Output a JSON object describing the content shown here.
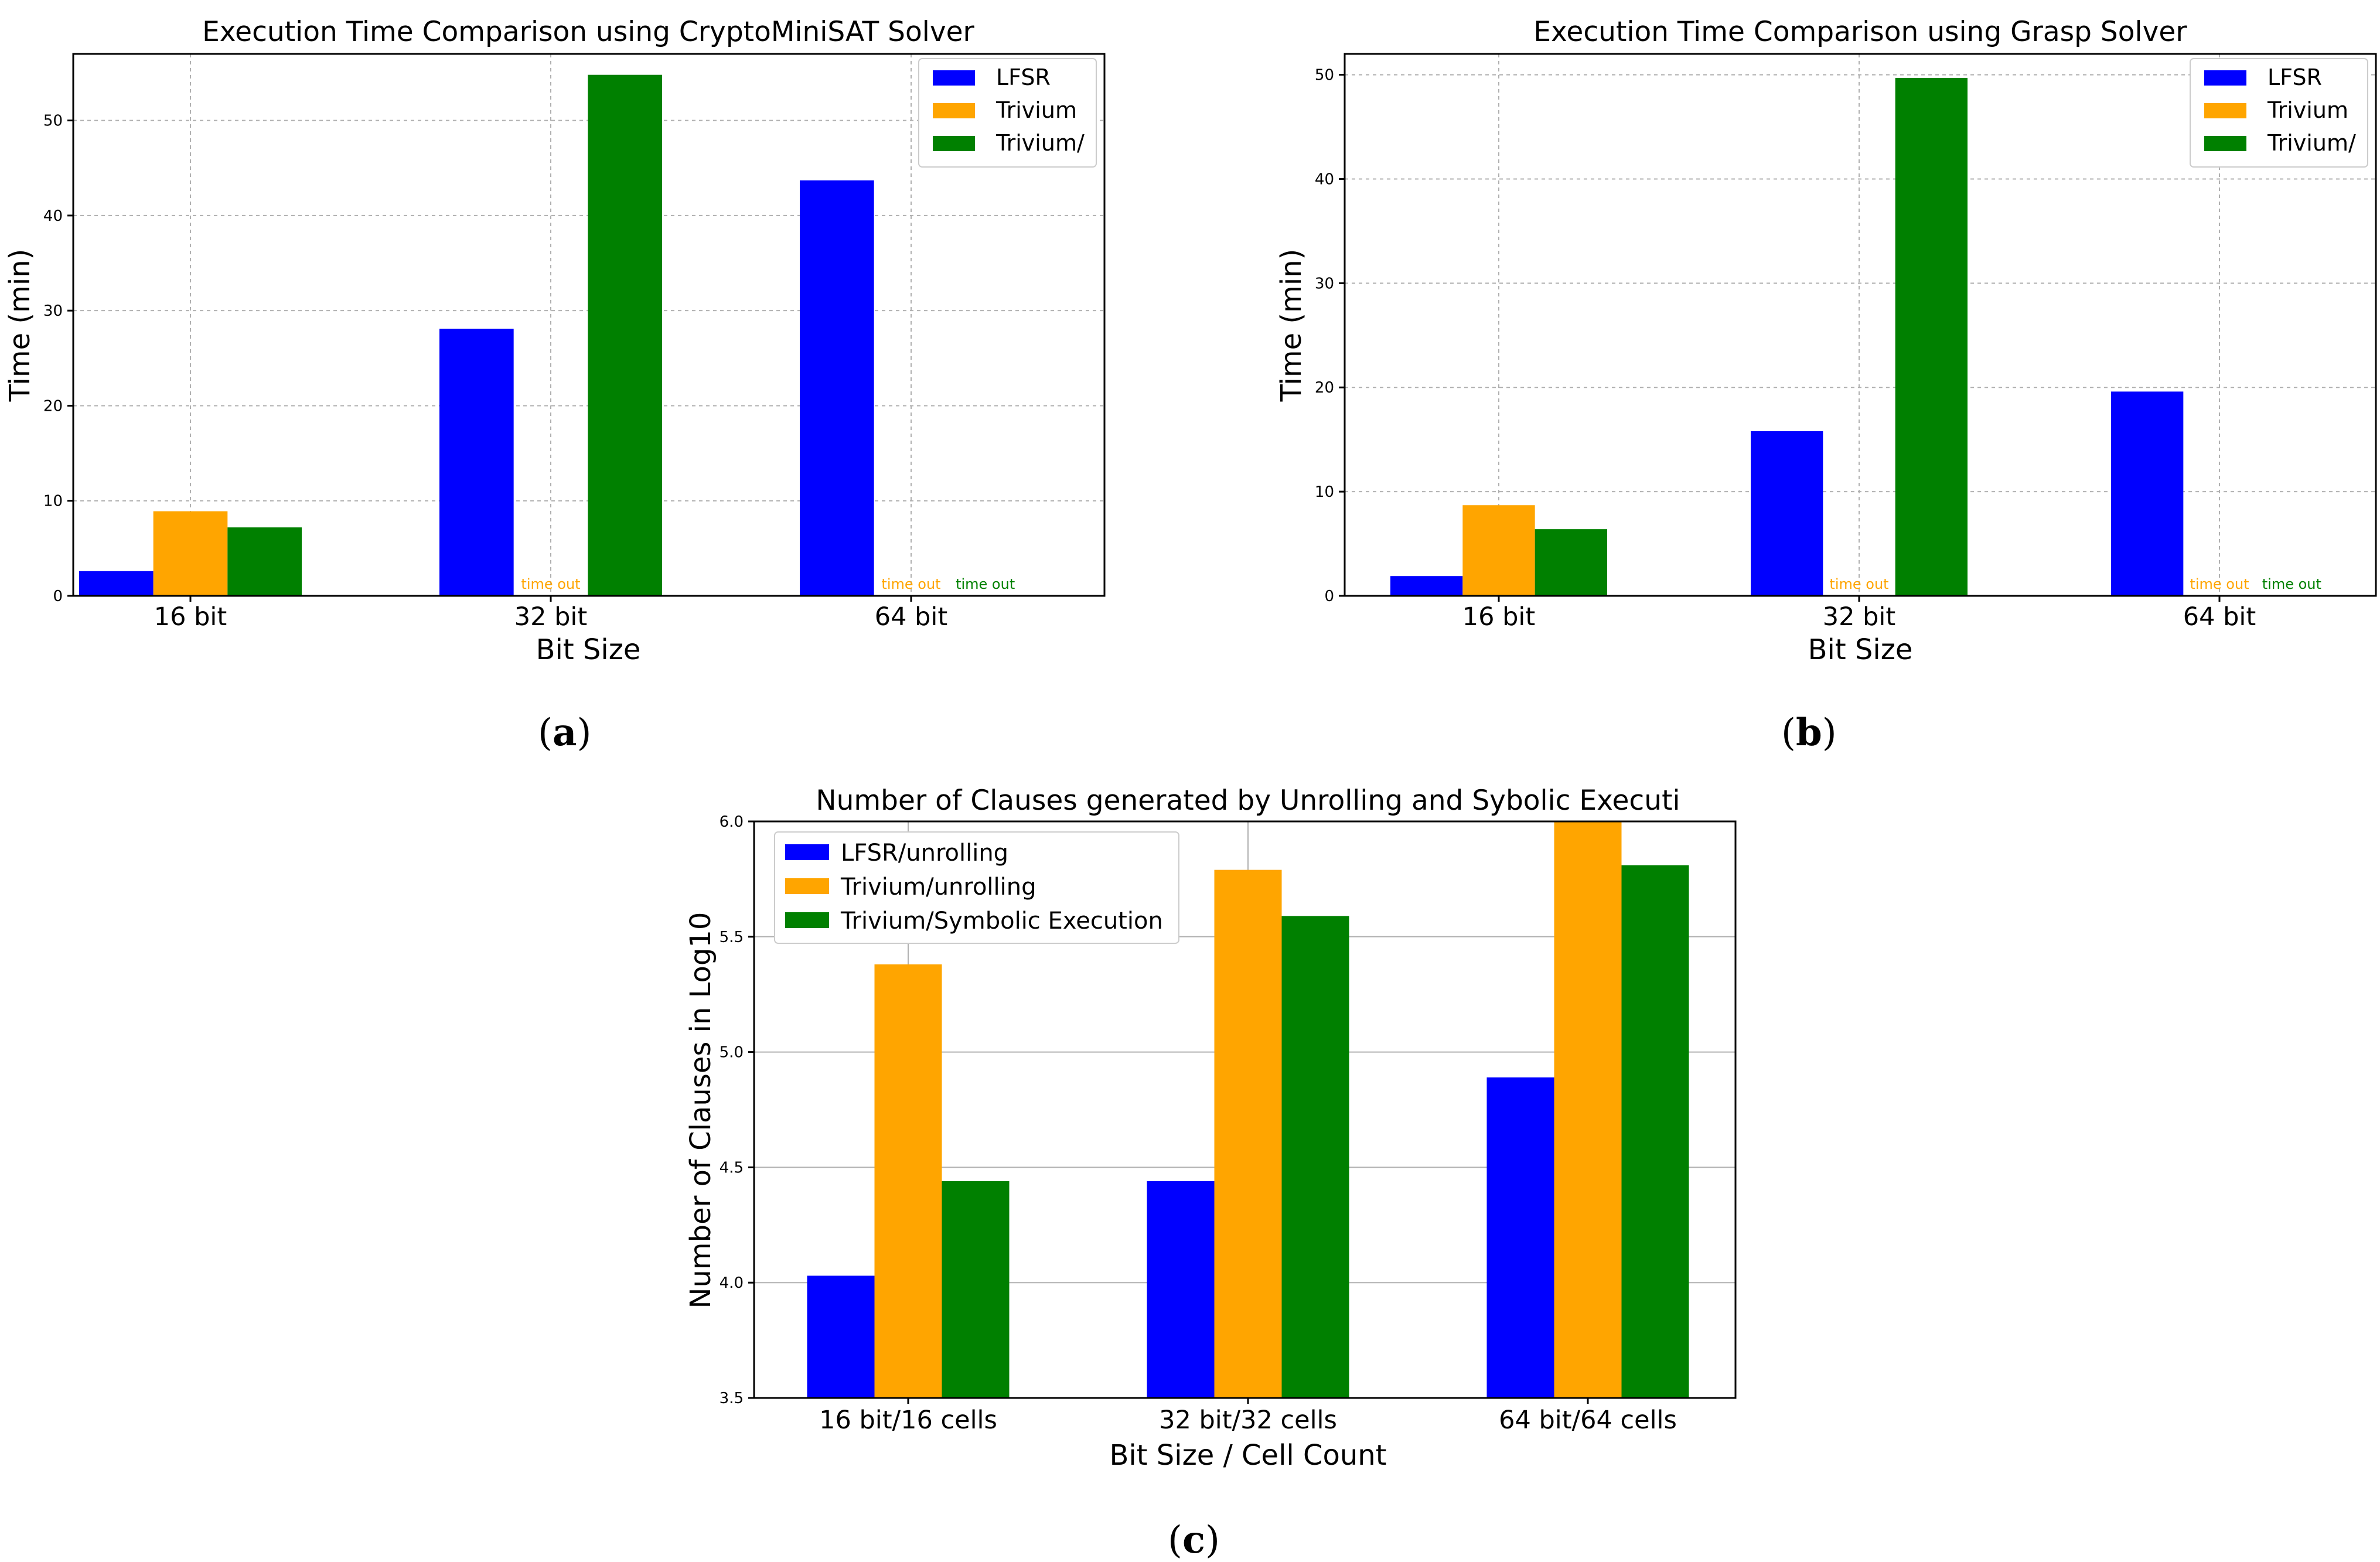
{
  "colors": {
    "LFSR": "#0000ff",
    "Trivium": "#ffa500",
    "Trivium_sym": "#008000"
  },
  "chart_data": [
    {
      "type": "bar",
      "title": "Execution Time Comparison using CryptoMiniSAT Solver",
      "xlabel": "Bit Size",
      "ylabel": "Time (min)",
      "categories": [
        "16 bit",
        "32 bit",
        "64 bit"
      ],
      "ylim": [
        0,
        57
      ],
      "yticks": [
        0,
        10,
        20,
        30,
        40,
        50
      ],
      "grid": true,
      "legend_position": "top-right",
      "series": [
        {
          "name": "LFSR",
          "color": "#0000ff",
          "values": [
            2.6,
            28.1,
            43.7
          ]
        },
        {
          "name": "Trivium",
          "color": "#ffa500",
          "values": [
            8.9,
            null,
            null
          ]
        },
        {
          "name": "Trivium/",
          "color": "#008000",
          "values": [
            7.2,
            54.8,
            null
          ]
        }
      ],
      "annotations": [
        {
          "category": 1,
          "series": 1,
          "text": "time out",
          "color": "#ffa500"
        },
        {
          "category": 2,
          "series": 1,
          "text": "time out",
          "color": "#ffa500"
        },
        {
          "category": 2,
          "series": 2,
          "text": "time out",
          "color": "#008000"
        }
      ],
      "caption": "a"
    },
    {
      "type": "bar",
      "title": "Execution Time Comparison using Grasp Solver",
      "xlabel": "Bit Size",
      "ylabel": "Time (min)",
      "categories": [
        "16 bit",
        "32 bit",
        "64 bit"
      ],
      "ylim": [
        0,
        52
      ],
      "yticks": [
        0,
        10,
        20,
        30,
        40,
        50
      ],
      "grid": true,
      "legend_position": "top-right",
      "series": [
        {
          "name": "LFSR",
          "color": "#0000ff",
          "values": [
            1.9,
            15.8,
            19.6
          ]
        },
        {
          "name": "Trivium",
          "color": "#ffa500",
          "values": [
            8.7,
            null,
            null
          ]
        },
        {
          "name": "Trivium/",
          "color": "#008000",
          "values": [
            6.4,
            49.7,
            null
          ]
        }
      ],
      "annotations": [
        {
          "category": 1,
          "series": 1,
          "text": "time out",
          "color": "#ffa500"
        },
        {
          "category": 2,
          "series": 1,
          "text": "time out",
          "color": "#ffa500"
        },
        {
          "category": 2,
          "series": 2,
          "text": "time out",
          "color": "#008000"
        }
      ],
      "caption": "b"
    },
    {
      "type": "bar",
      "title": "Number of Clauses generated by Unrolling and Sybolic Executi",
      "xlabel": "Bit Size / Cell Count",
      "ylabel": "Number of Clauses in Log10",
      "categories": [
        "16 bit/16 cells",
        "32 bit/32 cells",
        "64 bit/64 cells"
      ],
      "ylim": [
        3.5,
        6.0
      ],
      "yticks": [
        "3.5",
        "4.0",
        "4.5",
        "5.0",
        "5.5",
        "6.0"
      ],
      "grid": true,
      "legend_position": "top-left",
      "series": [
        {
          "name": "LFSR/unrolling",
          "color": "#0000ff",
          "values": [
            4.03,
            4.44,
            4.89
          ]
        },
        {
          "name": "Trivium/unrolling",
          "color": "#ffa500",
          "values": [
            5.38,
            5.79,
            6.0
          ]
        },
        {
          "name": "Trivium/Symbolic Execution",
          "color": "#008000",
          "values": [
            4.44,
            5.59,
            5.81
          ]
        }
      ],
      "caption": "c"
    }
  ]
}
